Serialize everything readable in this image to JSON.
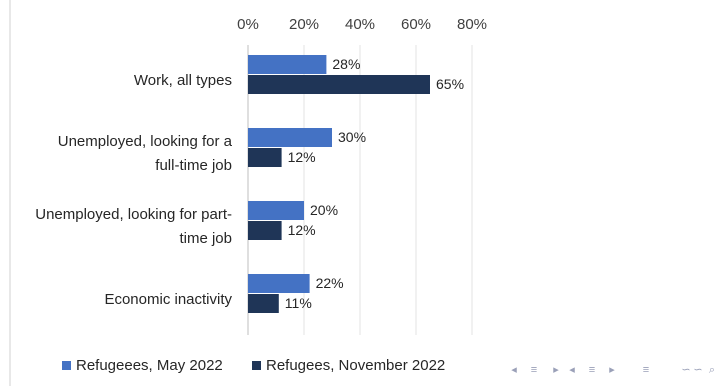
{
  "chart_data": {
    "type": "bar",
    "orientation": "horizontal",
    "categories": [
      [
        "Work, all types"
      ],
      [
        "Unemployed, looking for a",
        "full-time job"
      ],
      [
        "Unemployed, looking for part-",
        "time job"
      ],
      [
        "Economic inactivity"
      ]
    ],
    "series": [
      {
        "name": "Refugeees, May 2022",
        "color": "#4472c4",
        "values": [
          28,
          30,
          20,
          22
        ],
        "labels": [
          "28%",
          "30%",
          "20%",
          "22%"
        ]
      },
      {
        "name": "Refugees, November 2022",
        "color": "#1f3557",
        "values": [
          65,
          12,
          12,
          11
        ],
        "labels": [
          "65%",
          "12%",
          "12%",
          "11%"
        ]
      }
    ],
    "xlim": [
      0,
      80
    ],
    "xticks": [
      0,
      20,
      40,
      60,
      80
    ],
    "xtick_labels": [
      "0%",
      "20%",
      "40%",
      "60%",
      "80%"
    ],
    "x_axis_position": "top",
    "grid": true,
    "legend_position": "bottom-left"
  },
  "nav_controls": {
    "color": "#9aa0b8",
    "glyphs": [
      "◂",
      "≡",
      "▸",
      "◂",
      "≡",
      "▸",
      "≡",
      "∽",
      "∽",
      "⌕"
    ]
  }
}
